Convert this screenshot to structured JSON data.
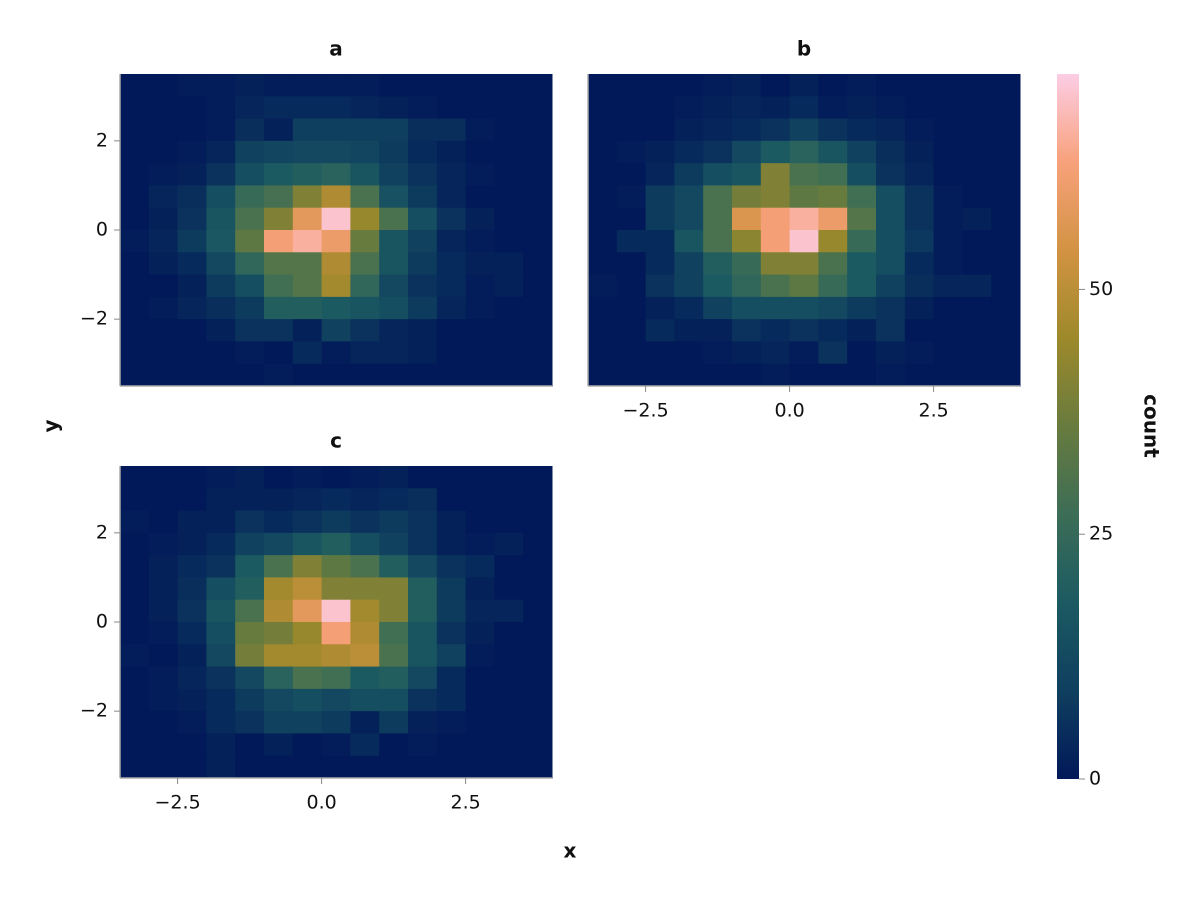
{
  "chart_data": {
    "type": "heatmap",
    "xlabel": "x",
    "ylabel": "y",
    "xlim": [
      -3.5,
      4.0
    ],
    "ylim": [
      -3.5,
      3.5
    ],
    "colormap": [
      "#011959",
      "#0f3f5f",
      "#1c5a62",
      "#3c6d56",
      "#687b3e",
      "#9d892b",
      "#d29343",
      "#f8a17b",
      "#fccde5"
    ],
    "colorbar": {
      "label": "count",
      "clim": [
        0,
        72
      ],
      "ticks": [
        0,
        25,
        50
      ]
    },
    "panels": [
      {
        "title": "a",
        "xbins": [
          -3.5,
          -3.0,
          -2.5,
          -2.0,
          -1.5,
          -1.0,
          -0.5,
          0.0,
          0.5,
          1.0,
          1.5,
          2.0,
          2.5,
          3.0,
          3.5,
          4.0
        ],
        "ybins": [
          3.5,
          3.0,
          2.5,
          2.0,
          1.5,
          1.0,
          0.5,
          0.0,
          -0.5,
          -1.0,
          -1.5,
          -2.0,
          -2.5,
          -3.0,
          -3.5
        ],
        "z": [
          [
            0,
            0,
            1,
            1,
            2,
            1,
            1,
            1,
            1,
            0,
            0,
            0,
            0,
            0,
            0
          ],
          [
            0,
            0,
            0,
            1,
            3,
            4,
            4,
            4,
            3,
            2,
            1,
            0,
            0,
            0,
            0
          ],
          [
            0,
            0,
            0,
            1,
            5,
            2,
            9,
            9,
            9,
            9,
            5,
            5,
            1,
            0,
            0
          ],
          [
            0,
            0,
            1,
            3,
            10,
            11,
            12,
            12,
            11,
            8,
            4,
            2,
            0,
            0,
            0
          ],
          [
            0,
            1,
            2,
            6,
            14,
            18,
            20,
            22,
            16,
            10,
            6,
            3,
            1,
            0,
            0
          ],
          [
            0,
            3,
            5,
            14,
            26,
            29,
            40,
            48,
            30,
            15,
            8,
            3,
            0,
            0,
            0
          ],
          [
            0,
            2,
            6,
            16,
            30,
            40,
            58,
            70,
            44,
            30,
            14,
            6,
            2,
            0,
            0
          ],
          [
            1,
            3,
            8,
            17,
            34,
            62,
            66,
            60,
            36,
            16,
            10,
            3,
            1,
            0,
            0
          ],
          [
            0,
            2,
            4,
            12,
            24,
            32,
            32,
            48,
            30,
            16,
            8,
            4,
            2,
            2,
            0
          ],
          [
            0,
            0,
            2,
            8,
            14,
            28,
            32,
            46,
            24,
            12,
            6,
            4,
            1,
            2,
            0
          ],
          [
            0,
            1,
            3,
            5,
            8,
            20,
            20,
            18,
            16,
            14,
            8,
            3,
            1,
            0,
            0
          ],
          [
            0,
            0,
            0,
            2,
            6,
            6,
            2,
            10,
            6,
            3,
            2,
            0,
            0,
            0,
            0
          ],
          [
            0,
            0,
            0,
            0,
            1,
            0,
            4,
            1,
            3,
            3,
            2,
            0,
            0,
            0,
            0
          ],
          [
            0,
            0,
            0,
            0,
            0,
            1,
            0,
            0,
            0,
            0,
            0,
            0,
            0,
            0,
            0
          ]
        ],
        "yticks": [
          {
            "value": -2,
            "label": "−2"
          },
          0,
          2
        ]
      },
      {
        "title": "b",
        "xbins": [
          -3.5,
          -3.0,
          -2.5,
          -2.0,
          -1.5,
          -1.0,
          -0.5,
          0.0,
          0.5,
          1.0,
          1.5,
          2.0,
          2.5,
          3.0,
          3.5,
          4.0
        ],
        "ybins": [
          3.5,
          3.0,
          2.5,
          2.0,
          1.5,
          1.0,
          0.5,
          0.0,
          -0.5,
          -1.0,
          -1.5,
          -2.0,
          -2.5,
          -3.0,
          -3.5
        ],
        "z": [
          [
            0,
            0,
            0,
            0,
            1,
            2,
            0,
            2,
            0,
            1,
            0,
            0,
            0,
            0,
            0
          ],
          [
            0,
            0,
            0,
            1,
            2,
            3,
            2,
            4,
            1,
            2,
            1,
            0,
            0,
            0,
            0
          ],
          [
            0,
            0,
            0,
            2,
            3,
            4,
            6,
            10,
            6,
            4,
            3,
            1,
            0,
            0,
            0
          ],
          [
            0,
            1,
            2,
            4,
            6,
            12,
            18,
            22,
            16,
            10,
            5,
            2,
            0,
            0,
            0
          ],
          [
            0,
            0,
            3,
            8,
            14,
            16,
            40,
            30,
            28,
            14,
            6,
            3,
            0,
            0,
            0
          ],
          [
            0,
            1,
            8,
            12,
            30,
            38,
            40,
            34,
            36,
            28,
            14,
            6,
            1,
            0,
            0
          ],
          [
            0,
            0,
            8,
            12,
            30,
            56,
            62,
            66,
            60,
            32,
            14,
            6,
            1,
            2,
            0
          ],
          [
            0,
            4,
            4,
            16,
            30,
            42,
            62,
            70,
            44,
            26,
            14,
            7,
            1,
            0,
            0
          ],
          [
            0,
            0,
            4,
            10,
            20,
            26,
            40,
            40,
            30,
            18,
            14,
            4,
            1,
            0,
            0
          ],
          [
            1,
            0,
            6,
            10,
            18,
            24,
            30,
            34,
            26,
            18,
            10,
            5,
            3,
            3,
            0
          ],
          [
            0,
            0,
            2,
            4,
            10,
            14,
            14,
            14,
            12,
            8,
            6,
            2,
            0,
            0,
            0
          ],
          [
            0,
            0,
            4,
            2,
            2,
            6,
            4,
            6,
            4,
            2,
            6,
            0,
            0,
            0,
            0
          ],
          [
            0,
            0,
            0,
            0,
            1,
            2,
            3,
            1,
            6,
            0,
            2,
            1,
            0,
            0,
            0
          ],
          [
            0,
            0,
            0,
            0,
            0,
            0,
            1,
            0,
            0,
            0,
            1,
            0,
            0,
            0,
            0
          ]
        ],
        "xticks": [
          {
            "value": -2.5,
            "label": "−2.5"
          },
          {
            "value": 0,
            "label": "0.0"
          },
          2.5
        ]
      },
      {
        "title": "c",
        "xbins": [
          -3.5,
          -3.0,
          -2.5,
          -2.0,
          -1.5,
          -1.0,
          -0.5,
          0.0,
          0.5,
          1.0,
          1.5,
          2.0,
          2.5,
          3.0,
          3.5,
          4.0
        ],
        "ybins": [
          3.5,
          3.0,
          2.5,
          2.0,
          1.5,
          1.0,
          0.5,
          0.0,
          -0.5,
          -1.0,
          -1.5,
          -2.0,
          -2.5,
          -3.0,
          -3.5
        ],
        "z": [
          [
            0,
            0,
            0,
            1,
            2,
            0,
            1,
            0,
            1,
            2,
            0,
            0,
            0,
            0,
            0
          ],
          [
            0,
            0,
            0,
            2,
            2,
            2,
            3,
            4,
            3,
            4,
            5,
            0,
            0,
            0,
            0
          ],
          [
            1,
            0,
            2,
            2,
            6,
            4,
            6,
            8,
            6,
            8,
            6,
            2,
            0,
            0,
            0
          ],
          [
            0,
            1,
            2,
            4,
            10,
            12,
            16,
            20,
            14,
            10,
            6,
            2,
            1,
            2,
            0
          ],
          [
            0,
            2,
            4,
            6,
            18,
            30,
            40,
            34,
            30,
            20,
            12,
            6,
            4,
            0,
            0
          ],
          [
            0,
            2,
            5,
            14,
            20,
            46,
            50,
            40,
            40,
            40,
            20,
            8,
            2,
            0,
            0
          ],
          [
            0,
            2,
            6,
            16,
            30,
            48,
            58,
            70,
            46,
            40,
            20,
            8,
            3,
            3,
            0
          ],
          [
            0,
            1,
            4,
            14,
            36,
            38,
            44,
            62,
            48,
            28,
            16,
            6,
            2,
            0,
            0
          ],
          [
            1,
            0,
            2,
            12,
            38,
            46,
            46,
            48,
            50,
            30,
            16,
            10,
            1,
            0,
            0
          ],
          [
            0,
            1,
            3,
            6,
            12,
            22,
            30,
            28,
            18,
            20,
            12,
            4,
            0,
            0,
            0
          ],
          [
            0,
            1,
            2,
            4,
            8,
            12,
            14,
            12,
            14,
            14,
            6,
            4,
            0,
            0,
            0
          ],
          [
            0,
            0,
            1,
            4,
            6,
            10,
            10,
            8,
            2,
            8,
            2,
            1,
            0,
            0,
            0
          ],
          [
            0,
            0,
            0,
            2,
            0,
            2,
            0,
            1,
            4,
            0,
            1,
            0,
            0,
            0,
            0
          ],
          [
            0,
            0,
            0,
            2,
            0,
            0,
            0,
            0,
            0,
            0,
            0,
            0,
            0,
            0,
            0
          ]
        ],
        "xticks": [
          {
            "value": -2.5,
            "label": "−2.5"
          },
          {
            "value": 0,
            "label": "0.0"
          },
          2.5
        ],
        "yticks": [
          {
            "value": -2,
            "label": "−2"
          },
          0,
          2
        ]
      }
    ]
  }
}
